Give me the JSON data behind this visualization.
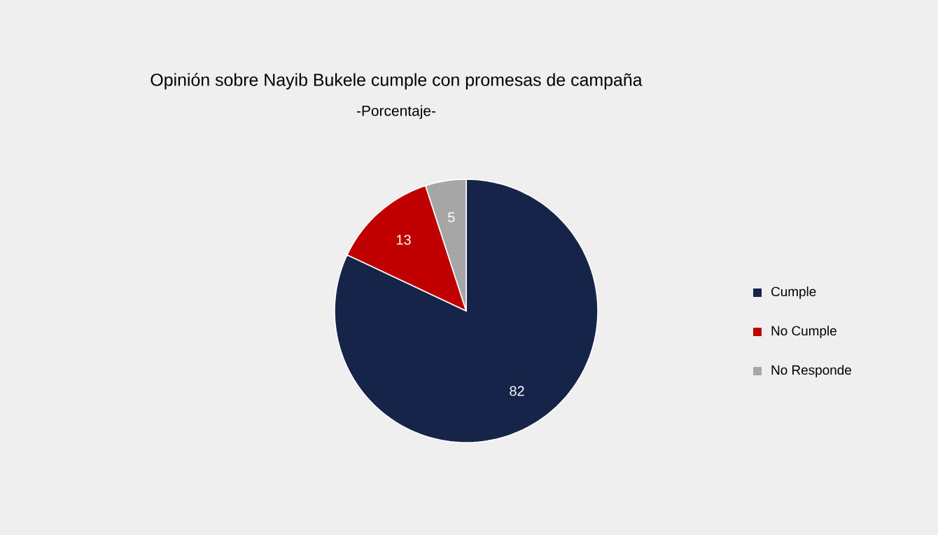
{
  "chart_data": {
    "type": "pie",
    "title": "Opinión sobre Nayib Bukele cumple con promesas de campaña",
    "subtitle": "-Porcentaje-",
    "categories": [
      "Cumple",
      "No Cumple",
      "No Responde"
    ],
    "values": [
      82,
      13,
      5
    ],
    "colors": [
      "#17244a",
      "#c00000",
      "#a6a6a6"
    ],
    "data_labels": true,
    "legend": "right"
  }
}
